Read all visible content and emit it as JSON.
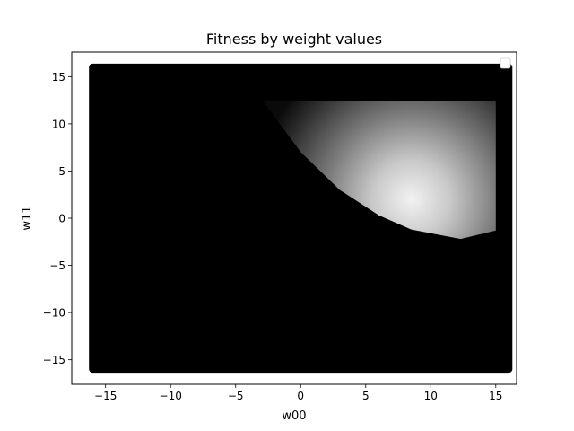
{
  "chart_data": {
    "type": "scatter",
    "title": "Fitness by weight values",
    "xlabel": "w00",
    "ylabel": "w11",
    "xlim": [
      -17.6,
      16.6
    ],
    "ylim": [
      -17.6,
      17.6
    ],
    "x_ticks": [
      -15,
      -10,
      -5,
      0,
      5,
      10,
      15
    ],
    "y_ticks": [
      -15,
      -10,
      -5,
      0,
      5,
      10,
      15
    ],
    "x_tick_labels": [
      "−15",
      "−10",
      "−5",
      "0",
      "5",
      "10",
      "15"
    ],
    "y_tick_labels": [
      "−15",
      "−10",
      "−5",
      "0",
      "5",
      "10",
      "15"
    ],
    "grid": false,
    "legend": {
      "placement": "upper right",
      "entries": []
    },
    "colormap": "grayscale (black = low fitness, white = high fitness)",
    "grid_extent": {
      "x": [
        -16,
        16
      ],
      "y": [
        -16,
        16
      ]
    },
    "point_color": "#000000",
    "high_fitness_region": {
      "description_points": [
        {
          "w00": -2.9,
          "w11": 12.4
        },
        {
          "w00": 15.0,
          "w11": 12.4
        },
        {
          "w00": 15.0,
          "w11": -1.3
        },
        {
          "w00": 12.3,
          "w11": -2.2
        },
        {
          "w00": 8.5,
          "w11": -1.2
        },
        {
          "w00": 6.0,
          "w11": 0.3
        },
        {
          "w00": 3.0,
          "w11": 3.0
        },
        {
          "w00": 0.0,
          "w11": 7.0
        },
        {
          "w00": -2.9,
          "w11": 12.4
        }
      ],
      "peak": {
        "w00": 8.5,
        "w11": 2.0
      }
    }
  }
}
